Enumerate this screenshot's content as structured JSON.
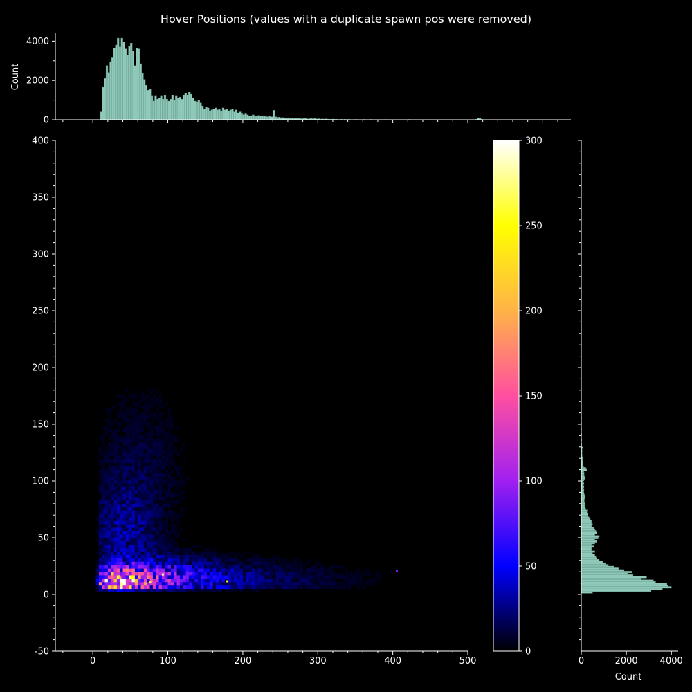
{
  "title": "Hover Positions (values with a duplicate spawn pos were removed)",
  "chart_data": {
    "type": "heatmap",
    "title": "Hover Positions (values with a duplicate spawn pos were removed)",
    "xlabel": "",
    "ylabel": "",
    "xlim": [
      -50,
      500
    ],
    "ylim": [
      -50,
      400
    ],
    "x_ticks": [
      0,
      100,
      200,
      300,
      400,
      500
    ],
    "y_ticks": [
      -50,
      0,
      50,
      100,
      150,
      200,
      250,
      300,
      350,
      400
    ],
    "colorbar": {
      "range": [
        0,
        300
      ],
      "ticks": [
        0,
        50,
        100,
        150,
        200,
        250,
        300
      ],
      "colormap": "gnuplot2",
      "colors": [
        "#000000",
        "#0000FF",
        "#A020F0",
        "#FF4FA0",
        "#FFB347",
        "#FFFF00",
        "#FFFFFF"
      ]
    },
    "heatmap_blobs": [
      {
        "x": 30,
        "y": 10,
        "sx": 18,
        "sy": 6,
        "amp": 180
      },
      {
        "x": 60,
        "y": 12,
        "sx": 40,
        "sy": 10,
        "amp": 70
      },
      {
        "x": 120,
        "y": 12,
        "sx": 60,
        "sy": 12,
        "amp": 40
      },
      {
        "x": 40,
        "y": 50,
        "sx": 30,
        "sy": 30,
        "amp": 25
      },
      {
        "x": 60,
        "y": 110,
        "sx": 40,
        "sy": 45,
        "amp": 10
      },
      {
        "x": 250,
        "y": 12,
        "sx": 80,
        "sy": 10,
        "amp": 12
      }
    ],
    "heatmap_hotspots": [
      {
        "x": 92,
        "y": 17,
        "v": 280
      },
      {
        "x": 75,
        "y": 10,
        "v": 260
      },
      {
        "x": 178,
        "y": 11,
        "v": 240
      },
      {
        "x": 404,
        "y": 20,
        "v": 90
      },
      {
        "x": 22,
        "y": 6,
        "v": 230
      },
      {
        "x": 35,
        "y": 14,
        "v": 200
      }
    ],
    "x_marginal": {
      "ylabel": "Count",
      "y_ticks": [
        0,
        2000,
        4000
      ],
      "ylim": [
        0,
        4400
      ],
      "bins": [
        [
          10,
          400
        ],
        [
          12.5,
          1650
        ],
        [
          15,
          2100
        ],
        [
          17.5,
          2750
        ],
        [
          20,
          2400
        ],
        [
          22.5,
          2950
        ],
        [
          25,
          3150
        ],
        [
          27.5,
          3650
        ],
        [
          30,
          3800
        ],
        [
          32.5,
          4150
        ],
        [
          35,
          3700
        ],
        [
          37.5,
          4150
        ],
        [
          40,
          3950
        ],
        [
          42.5,
          3600
        ],
        [
          45,
          3300
        ],
        [
          47.5,
          3750
        ],
        [
          50,
          3900
        ],
        [
          52.5,
          3500
        ],
        [
          55,
          2750
        ],
        [
          57.5,
          3650
        ],
        [
          60,
          3600
        ],
        [
          62.5,
          2850
        ],
        [
          65,
          2350
        ],
        [
          67.5,
          2050
        ],
        [
          70,
          1750
        ],
        [
          72.5,
          1500
        ],
        [
          75,
          1550
        ],
        [
          77.5,
          1200
        ],
        [
          80,
          950
        ],
        [
          82.5,
          1200
        ],
        [
          85,
          1050
        ],
        [
          87.5,
          1100
        ],
        [
          90,
          1200
        ],
        [
          92.5,
          1050
        ],
        [
          95,
          1250
        ],
        [
          97.5,
          1050
        ],
        [
          100,
          950
        ],
        [
          102.5,
          1050
        ],
        [
          105,
          1250
        ],
        [
          107.5,
          1000
        ],
        [
          110,
          1200
        ],
        [
          112.5,
          1100
        ],
        [
          115,
          1150
        ],
        [
          117.5,
          1050
        ],
        [
          120,
          1250
        ],
        [
          122.5,
          1350
        ],
        [
          125,
          1250
        ],
        [
          127.5,
          1400
        ],
        [
          130,
          1300
        ],
        [
          132.5,
          1100
        ],
        [
          135,
          950
        ],
        [
          137.5,
          900
        ],
        [
          140,
          1000
        ],
        [
          142.5,
          850
        ],
        [
          145,
          700
        ],
        [
          147.5,
          550
        ],
        [
          150,
          650
        ],
        [
          152.5,
          600
        ],
        [
          155,
          450
        ],
        [
          157.5,
          500
        ],
        [
          160,
          550
        ],
        [
          162.5,
          600
        ],
        [
          165,
          500
        ],
        [
          167.5,
          550
        ],
        [
          170,
          450
        ],
        [
          172.5,
          600
        ],
        [
          175,
          500
        ],
        [
          177.5,
          550
        ],
        [
          180,
          450
        ],
        [
          182.5,
          500
        ],
        [
          185,
          550
        ],
        [
          187.5,
          400
        ],
        [
          190,
          500
        ],
        [
          192.5,
          350
        ],
        [
          195,
          400
        ],
        [
          197.5,
          300
        ],
        [
          200,
          250
        ],
        [
          202.5,
          300
        ],
        [
          205,
          250
        ],
        [
          207.5,
          200
        ],
        [
          210,
          200
        ],
        [
          212.5,
          250
        ],
        [
          215,
          200
        ],
        [
          217.5,
          180
        ],
        [
          220,
          220
        ],
        [
          222.5,
          200
        ],
        [
          225,
          180
        ],
        [
          227.5,
          200
        ],
        [
          230,
          160
        ],
        [
          232.5,
          150
        ],
        [
          235,
          170
        ],
        [
          237.5,
          150
        ],
        [
          240,
          480
        ],
        [
          242.5,
          150
        ],
        [
          245,
          120
        ],
        [
          247.5,
          130
        ],
        [
          250,
          100
        ],
        [
          252.5,
          110
        ],
        [
          255,
          90
        ],
        [
          257.5,
          80
        ],
        [
          260,
          100
        ],
        [
          262.5,
          70
        ],
        [
          265,
          80
        ],
        [
          267.5,
          60
        ],
        [
          270,
          70
        ],
        [
          272.5,
          90
        ],
        [
          275,
          60
        ],
        [
          277.5,
          50
        ],
        [
          280,
          60
        ],
        [
          282.5,
          70
        ],
        [
          285,
          40
        ],
        [
          287.5,
          50
        ],
        [
          290,
          60
        ],
        [
          292.5,
          50
        ],
        [
          295,
          60
        ],
        [
          297.5,
          40
        ],
        [
          300,
          50
        ],
        [
          302.5,
          30
        ],
        [
          305,
          40
        ],
        [
          307.5,
          30
        ],
        [
          310,
          40
        ],
        [
          312.5,
          30
        ],
        [
          315,
          20
        ],
        [
          317.5,
          30
        ],
        [
          320,
          30
        ],
        [
          322.5,
          20
        ],
        [
          325,
          20
        ],
        [
          330,
          20
        ],
        [
          335,
          20
        ],
        [
          340,
          20
        ],
        [
          350,
          15
        ],
        [
          360,
          15
        ],
        [
          370,
          15
        ],
        [
          380,
          12
        ],
        [
          390,
          12
        ],
        [
          400,
          10
        ],
        [
          410,
          10
        ],
        [
          420,
          15
        ],
        [
          430,
          10
        ],
        [
          440,
          8
        ],
        [
          450,
          10
        ],
        [
          460,
          8
        ],
        [
          470,
          6
        ],
        [
          480,
          5
        ],
        [
          490,
          5
        ],
        [
          500,
          5
        ],
        [
          510,
          20
        ],
        [
          512.5,
          90
        ],
        [
          515,
          70
        ],
        [
          517.5,
          20
        ],
        [
          520,
          10
        ]
      ]
    },
    "y_marginal": {
      "xlabel": "Count",
      "x_ticks": [
        0,
        2000,
        4000
      ],
      "xlim": [
        0,
        4300
      ],
      "bins": [
        [
          1,
          500
        ],
        [
          2.5,
          3100
        ],
        [
          4,
          3600
        ],
        [
          5.5,
          4000
        ],
        [
          7,
          3850
        ],
        [
          8.5,
          3800
        ],
        [
          10,
          3300
        ],
        [
          11.5,
          3200
        ],
        [
          13,
          2650
        ],
        [
          14.5,
          2900
        ],
        [
          16,
          2300
        ],
        [
          17.5,
          2050
        ],
        [
          19,
          2250
        ],
        [
          20.5,
          1900
        ],
        [
          22,
          1650
        ],
        [
          23.5,
          1450
        ],
        [
          25,
          1200
        ],
        [
          26.5,
          1100
        ],
        [
          28,
          950
        ],
        [
          29.5,
          800
        ],
        [
          31,
          700
        ],
        [
          32.5,
          650
        ],
        [
          34,
          600
        ],
        [
          35.5,
          500
        ],
        [
          37,
          600
        ],
        [
          38.5,
          450
        ],
        [
          40,
          450
        ],
        [
          41.5,
          550
        ],
        [
          43,
          450
        ],
        [
          44.5,
          600
        ],
        [
          46,
          700
        ],
        [
          47.5,
          600
        ],
        [
          49,
          750
        ],
        [
          50.5,
          800
        ],
        [
          52,
          600
        ],
        [
          53.5,
          700
        ],
        [
          55,
          650
        ],
        [
          56.5,
          600
        ],
        [
          58,
          550
        ],
        [
          59.5,
          450
        ],
        [
          61,
          500
        ],
        [
          62.5,
          450
        ],
        [
          64,
          450
        ],
        [
          65.5,
          400
        ],
        [
          67,
          350
        ],
        [
          68.5,
          300
        ],
        [
          70,
          300
        ],
        [
          71.5,
          250
        ],
        [
          73,
          260
        ],
        [
          74.5,
          200
        ],
        [
          76,
          180
        ],
        [
          77.5,
          150
        ],
        [
          79,
          180
        ],
        [
          80.5,
          140
        ],
        [
          82,
          130
        ],
        [
          83.5,
          140
        ],
        [
          85,
          180
        ],
        [
          86.5,
          150
        ],
        [
          88,
          130
        ],
        [
          89.5,
          110
        ],
        [
          91,
          120
        ],
        [
          92.5,
          100
        ],
        [
          94,
          120
        ],
        [
          95.5,
          100
        ],
        [
          97,
          120
        ],
        [
          98.5,
          80
        ],
        [
          100,
          120
        ],
        [
          101.5,
          160
        ],
        [
          103,
          140
        ],
        [
          104.5,
          120
        ],
        [
          106,
          130
        ],
        [
          107.5,
          110
        ],
        [
          109,
          240
        ],
        [
          110.5,
          200
        ],
        [
          112,
          100
        ],
        [
          113.5,
          80
        ],
        [
          115,
          70
        ],
        [
          116.5,
          80
        ],
        [
          118,
          50
        ],
        [
          119.5,
          60
        ],
        [
          121,
          40
        ],
        [
          122.5,
          40
        ],
        [
          124,
          30
        ],
        [
          125.5,
          40
        ],
        [
          127,
          30
        ],
        [
          128.5,
          60
        ],
        [
          130,
          20
        ],
        [
          132,
          20
        ],
        [
          135,
          20
        ],
        [
          140,
          20
        ],
        [
          145,
          15
        ],
        [
          150,
          15
        ],
        [
          155,
          15
        ],
        [
          160,
          10
        ],
        [
          165,
          10
        ],
        [
          170,
          10
        ],
        [
          175,
          10
        ],
        [
          180,
          10
        ],
        [
          185,
          5
        ]
      ]
    }
  }
}
